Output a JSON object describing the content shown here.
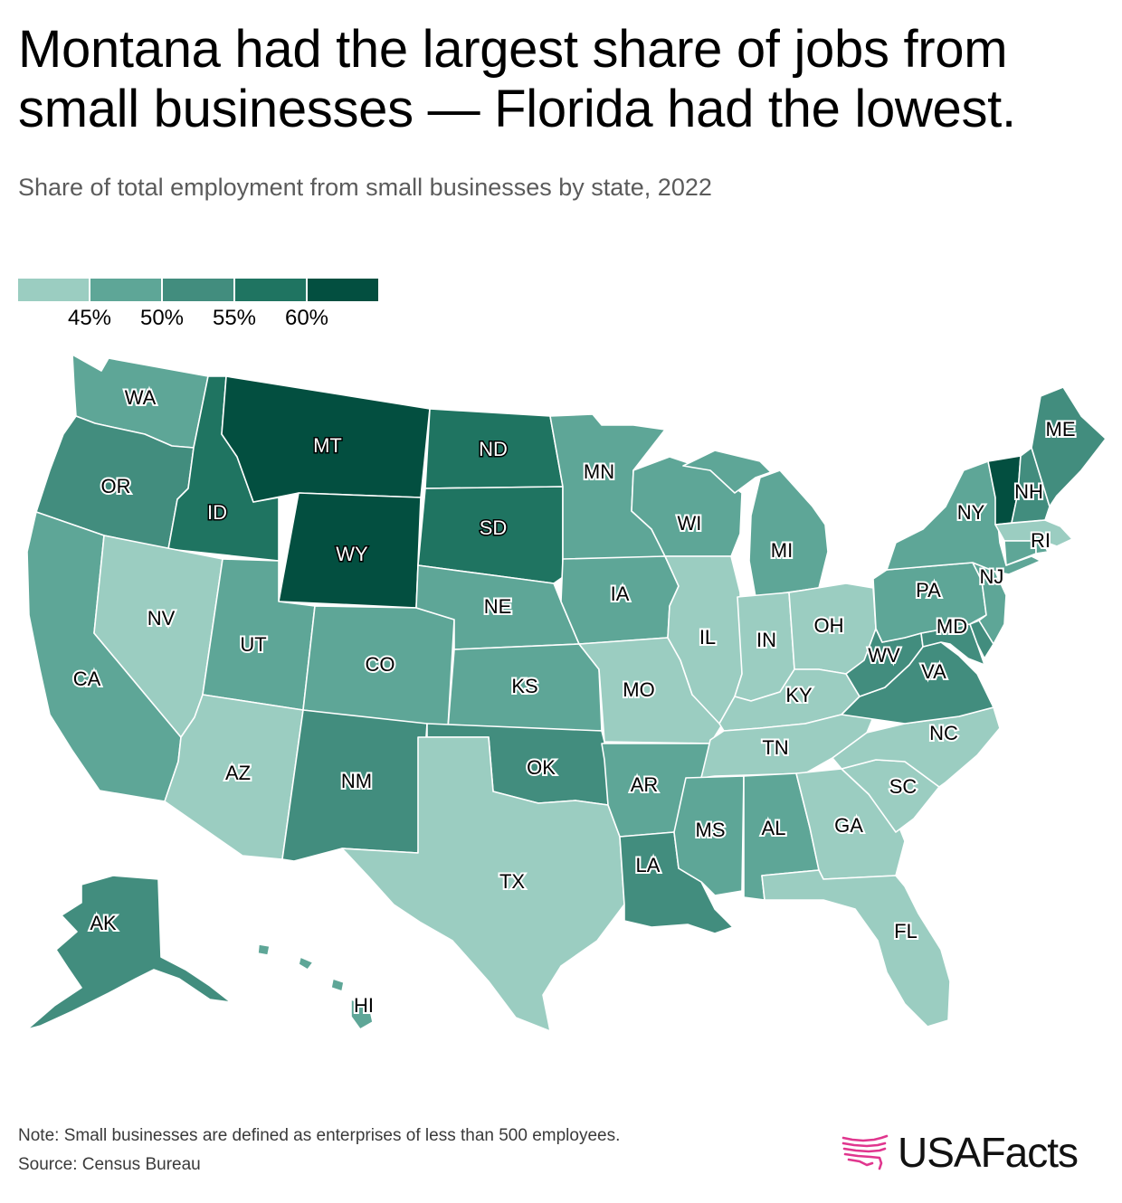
{
  "title": {
    "line1": "Montana had the largest share of jobs from",
    "line2": "small businesses — Florida had the lowest."
  },
  "subtitle": "Share of total employment from small businesses by state, 2022",
  "legend": {
    "labels": [
      "45%",
      "50%",
      "55%",
      "60%"
    ],
    "colors": [
      "#9bcdc1",
      "#5ea697",
      "#428d7e",
      "#1f7461",
      "#034f40"
    ]
  },
  "colors": {
    "label_light": "#000000",
    "label_dark": "#ffffff",
    "border": "#ffffff",
    "logo_pink": "#e0368e"
  },
  "states": [
    {
      "code": "WA",
      "bin": 1
    },
    {
      "code": "OR",
      "bin": 2
    },
    {
      "code": "CA",
      "bin": 1
    },
    {
      "code": "ID",
      "bin": 3
    },
    {
      "code": "NV",
      "bin": 0
    },
    {
      "code": "MT",
      "bin": 4
    },
    {
      "code": "WY",
      "bin": 4
    },
    {
      "code": "UT",
      "bin": 1
    },
    {
      "code": "AZ",
      "bin": 0
    },
    {
      "code": "CO",
      "bin": 1
    },
    {
      "code": "NM",
      "bin": 2
    },
    {
      "code": "ND",
      "bin": 3
    },
    {
      "code": "SD",
      "bin": 3
    },
    {
      "code": "NE",
      "bin": 1
    },
    {
      "code": "KS",
      "bin": 1
    },
    {
      "code": "OK",
      "bin": 2
    },
    {
      "code": "TX",
      "bin": 0
    },
    {
      "code": "MN",
      "bin": 1
    },
    {
      "code": "IA",
      "bin": 1
    },
    {
      "code": "MO",
      "bin": 0
    },
    {
      "code": "AR",
      "bin": 1
    },
    {
      "code": "LA",
      "bin": 2
    },
    {
      "code": "WI",
      "bin": 1
    },
    {
      "code": "IL",
      "bin": 0
    },
    {
      "code": "MI",
      "bin": 1
    },
    {
      "code": "IN",
      "bin": 0
    },
    {
      "code": "OH",
      "bin": 0
    },
    {
      "code": "KY",
      "bin": 0
    },
    {
      "code": "TN",
      "bin": 0
    },
    {
      "code": "MS",
      "bin": 1
    },
    {
      "code": "AL",
      "bin": 1
    },
    {
      "code": "GA",
      "bin": 0
    },
    {
      "code": "FL",
      "bin": 0
    },
    {
      "code": "SC",
      "bin": 0
    },
    {
      "code": "NC",
      "bin": 0
    },
    {
      "code": "VA",
      "bin": 2
    },
    {
      "code": "WV",
      "bin": 2
    },
    {
      "code": "MD",
      "bin": 2
    },
    {
      "code": "DE",
      "bin": 2
    },
    {
      "code": "NJ",
      "bin": 1
    },
    {
      "code": "PA",
      "bin": 1
    },
    {
      "code": "NY",
      "bin": 1
    },
    {
      "code": "VT",
      "bin": 4
    },
    {
      "code": "NH",
      "bin": 2
    },
    {
      "code": "ME",
      "bin": 2
    },
    {
      "code": "MA",
      "bin": 0
    },
    {
      "code": "CT",
      "bin": 1
    },
    {
      "code": "RI",
      "bin": 1
    },
    {
      "code": "AK",
      "bin": 2
    },
    {
      "code": "HI",
      "bin": 1
    }
  ],
  "footer": {
    "note": "Note: Small businesses are defined as enterprises of less than 500 employees.",
    "source": "Source: Census Bureau"
  },
  "logo": {
    "text": "USAFacts",
    "icon": "usa-map-outline-icon"
  }
}
